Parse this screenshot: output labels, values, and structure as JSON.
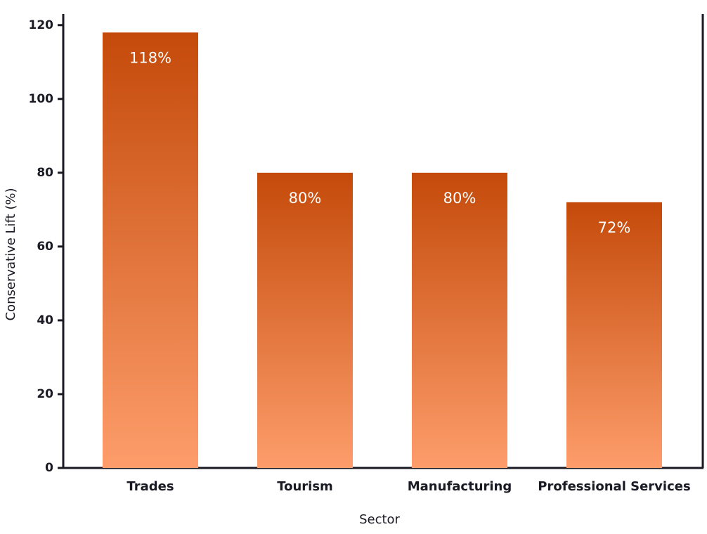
{
  "chart_data": {
    "type": "bar",
    "x_label": "Sector",
    "y_label": "Conservative Lift (%)",
    "categories": [
      "Trades",
      "Tourism",
      "Manufacturing",
      "Professional Services"
    ],
    "values": [
      118,
      80,
      80,
      72
    ],
    "value_labels": [
      "118%",
      "80%",
      "80%",
      "72%"
    ],
    "color_top": "#c44a0a",
    "color_bottom": "#fd9d6b",
    "ylim": [
      0,
      123
    ],
    "yticks": [
      0,
      20,
      40,
      60,
      80,
      100,
      120
    ],
    "grid": false
  }
}
